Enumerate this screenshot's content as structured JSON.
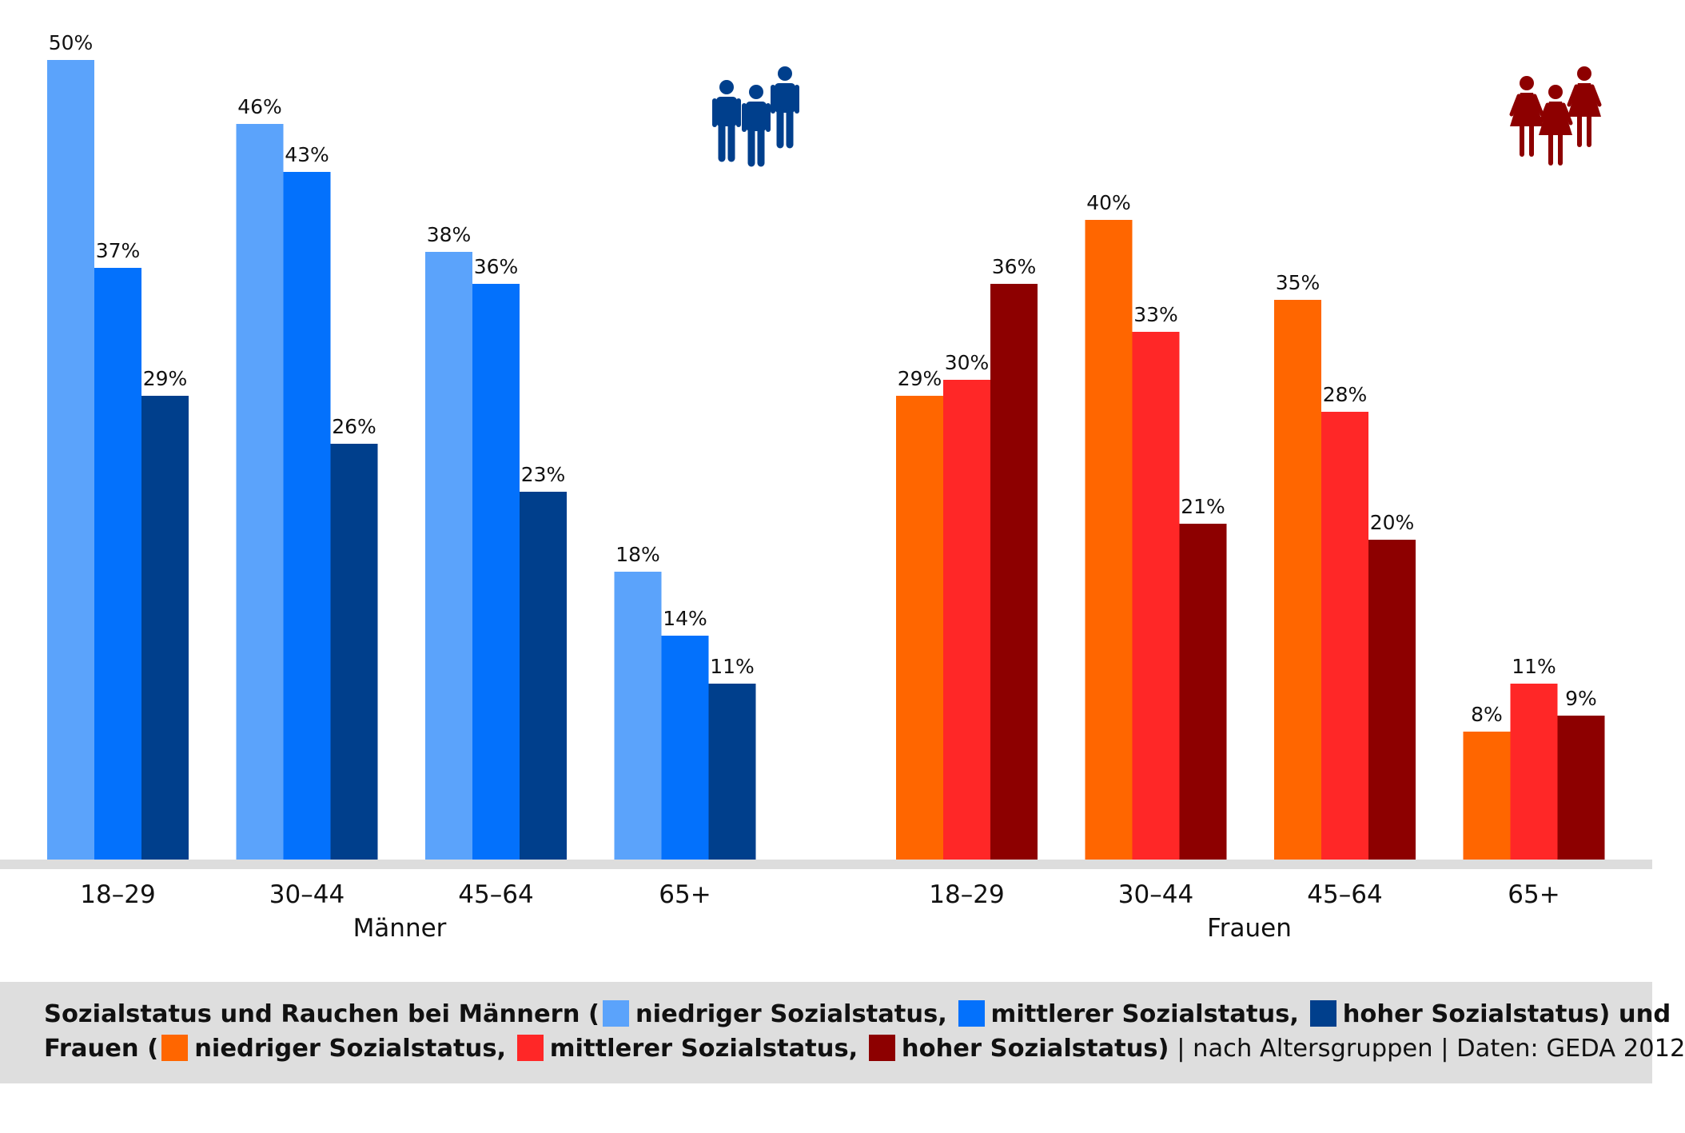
{
  "colors": {
    "men": [
      "#5ba3fb",
      "#0371fc",
      "#003f8c"
    ],
    "women": [
      "#ff6600",
      "#ff2727",
      "#8d0000"
    ],
    "axis": "#dddddd",
    "caption_bg": "#dedede"
  },
  "icons": {
    "men_icon": "men-group-icon",
    "women_icon": "women-group-icon"
  },
  "chart_data": {
    "type": "bar",
    "ylim": [
      0,
      52
    ],
    "grid": false,
    "value_format": "{v}%",
    "groups": [
      {
        "label": "Männer",
        "categories": [
          "18–29",
          "30–44",
          "45–64",
          "65+"
        ],
        "series": [
          {
            "name": "niedriger Sozialstatus",
            "values": [
              50,
              46,
              38,
              18
            ]
          },
          {
            "name": "mittlerer Sozialstatus",
            "values": [
              37,
              43,
              36,
              14
            ]
          },
          {
            "name": "hoher Sozialstatus",
            "values": [
              29,
              26,
              23,
              11
            ]
          }
        ]
      },
      {
        "label": "Frauen",
        "categories": [
          "18–29",
          "30–44",
          "45–64",
          "65+"
        ],
        "series": [
          {
            "name": "niedriger Sozialstatus",
            "values": [
              29,
              40,
              35,
              8
            ]
          },
          {
            "name": "mittlerer Sozialstatus",
            "values": [
              30,
              33,
              28,
              11
            ]
          },
          {
            "name": "hoher Sozialstatus",
            "values": [
              36,
              21,
              20,
              9
            ]
          }
        ]
      }
    ]
  },
  "caption": {
    "line1_a": "Sozialstatus und Rauchen bei Männern (",
    "line1_b": "niedriger Sozialstatus,",
    "line1_c": "mittlerer Sozialstatus,",
    "line1_d": "hoher Sozialstatus) und",
    "line2_a": "Frauen (",
    "line2_b": "niedriger Sozialstatus,",
    "line2_c": "mittlerer Sozialstatus,",
    "line2_d": "hoher Sozialstatus)",
    "line2_e": " | nach Altersgruppen | Daten: GEDA 2012"
  }
}
